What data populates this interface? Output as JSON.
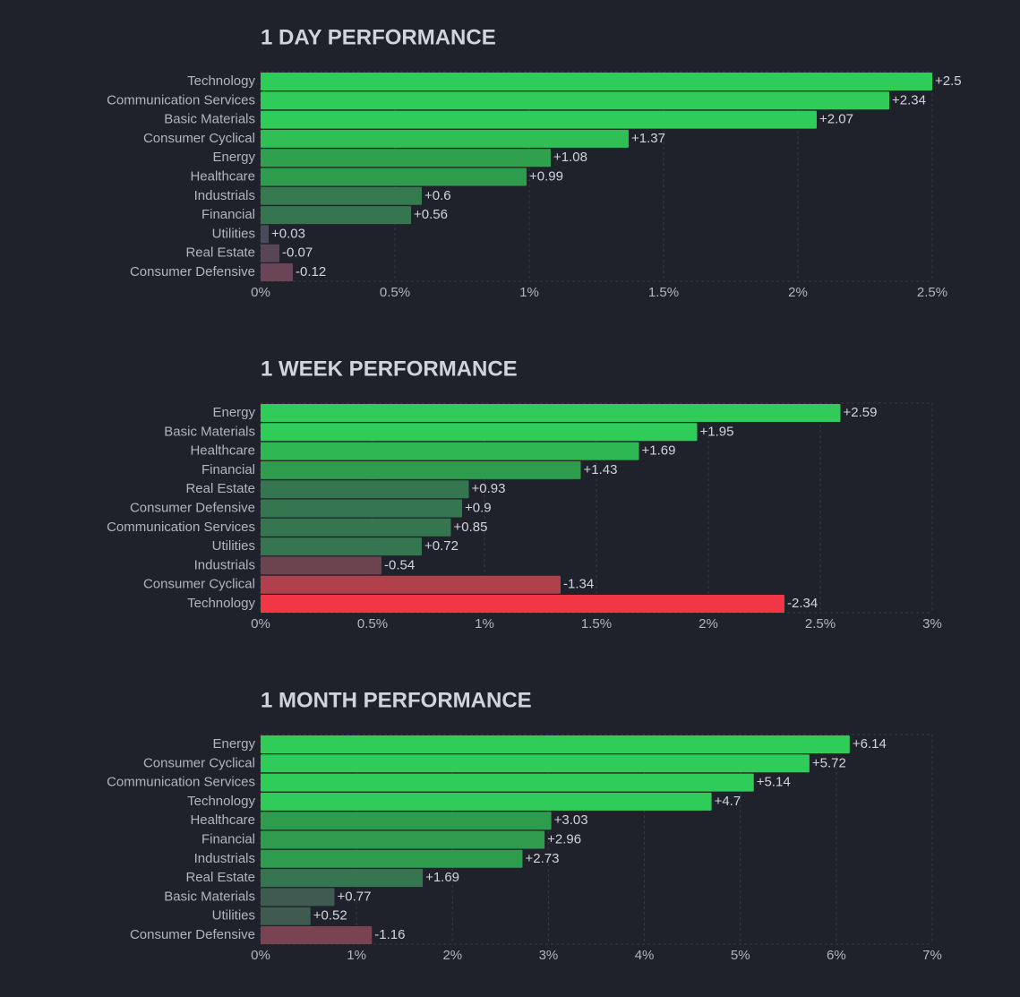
{
  "chart_data": [
    {
      "type": "bar",
      "title": "1 DAY PERFORMANCE",
      "categories": [
        "Technology",
        "Communication Services",
        "Basic Materials",
        "Consumer Cyclical",
        "Energy",
        "Healthcare",
        "Industrials",
        "Financial",
        "Utilities",
        "Real Estate",
        "Consumer Defensive"
      ],
      "values": [
        2.5,
        2.34,
        2.07,
        1.37,
        1.08,
        0.99,
        0.6,
        0.56,
        0.03,
        -0.07,
        -0.12
      ],
      "value_labels": [
        "+2.5",
        "+2.34",
        "+2.07",
        "+1.37",
        "+1.08",
        "+0.99",
        "+0.6",
        "+0.56",
        "+0.03",
        "-0.07",
        "-0.12"
      ],
      "colors": [
        "#30cc5a",
        "#30cc5a",
        "#30cc5a",
        "#2fbf56",
        "#2fa04e",
        "#2f9b4d",
        "#347a4e",
        "#357550",
        "#4a4a5a",
        "#5a4554",
        "#6a4556"
      ],
      "xlim": [
        0,
        2.5
      ],
      "xticks": [
        {
          "value": 0,
          "label": "0%"
        },
        {
          "value": 0.5,
          "label": "0.5%"
        },
        {
          "value": 1,
          "label": "1%"
        },
        {
          "value": 1.5,
          "label": "1.5%"
        },
        {
          "value": 2,
          "label": "2%"
        },
        {
          "value": 2.5,
          "label": "2.5%"
        }
      ],
      "grid": true
    },
    {
      "type": "bar",
      "title": "1 WEEK PERFORMANCE",
      "categories": [
        "Energy",
        "Basic Materials",
        "Healthcare",
        "Financial",
        "Real Estate",
        "Consumer Defensive",
        "Communication Services",
        "Utilities",
        "Industrials",
        "Consumer Cyclical",
        "Technology"
      ],
      "values": [
        2.59,
        1.95,
        1.69,
        1.43,
        0.93,
        0.9,
        0.85,
        0.72,
        -0.54,
        -1.34,
        -2.34
      ],
      "value_labels": [
        "+2.59",
        "+1.95",
        "+1.69",
        "+1.43",
        "+0.93",
        "+0.9",
        "+0.85",
        "+0.72",
        "-0.54",
        "-1.34",
        "-2.34"
      ],
      "colors": [
        "#30cc5a",
        "#30cc5a",
        "#2fb754",
        "#2f9b4d",
        "#357550",
        "#357550",
        "#357550",
        "#357550",
        "#6b4450",
        "#b0404b",
        "#f23645"
      ],
      "xlim": [
        0,
        3
      ],
      "xticks": [
        {
          "value": 0,
          "label": "0%"
        },
        {
          "value": 0.5,
          "label": "0.5%"
        },
        {
          "value": 1,
          "label": "1%"
        },
        {
          "value": 1.5,
          "label": "1.5%"
        },
        {
          "value": 2,
          "label": "2%"
        },
        {
          "value": 2.5,
          "label": "2.5%"
        },
        {
          "value": 3,
          "label": "3%"
        }
      ],
      "grid": true
    },
    {
      "type": "bar",
      "title": "1 MONTH PERFORMANCE",
      "categories": [
        "Energy",
        "Consumer Cyclical",
        "Communication Services",
        "Technology",
        "Healthcare",
        "Financial",
        "Industrials",
        "Real Estate",
        "Basic Materials",
        "Utilities",
        "Consumer Defensive"
      ],
      "values": [
        6.14,
        5.72,
        5.14,
        4.7,
        3.03,
        2.96,
        2.73,
        1.69,
        0.77,
        0.52,
        -1.16
      ],
      "value_labels": [
        "+6.14",
        "+5.72",
        "+5.14",
        "+4.7",
        "+3.03",
        "+2.96",
        "+2.73",
        "+1.69",
        "+0.77",
        "+0.52",
        "-1.16"
      ],
      "colors": [
        "#30cc5a",
        "#30cc5a",
        "#30cc5a",
        "#30cc5a",
        "#2f9b4d",
        "#2f9b4d",
        "#2f9b4d",
        "#357550",
        "#3f5a51",
        "#3f5a51",
        "#7a4352"
      ],
      "xlim": [
        0,
        7
      ],
      "xticks": [
        {
          "value": 0,
          "label": "0%"
        },
        {
          "value": 1,
          "label": "1%"
        },
        {
          "value": 2,
          "label": "2%"
        },
        {
          "value": 3,
          "label": "3%"
        },
        {
          "value": 4,
          "label": "4%"
        },
        {
          "value": 5,
          "label": "5%"
        },
        {
          "value": 6,
          "label": "6%"
        },
        {
          "value": 7,
          "label": "7%"
        }
      ],
      "grid": true
    }
  ]
}
